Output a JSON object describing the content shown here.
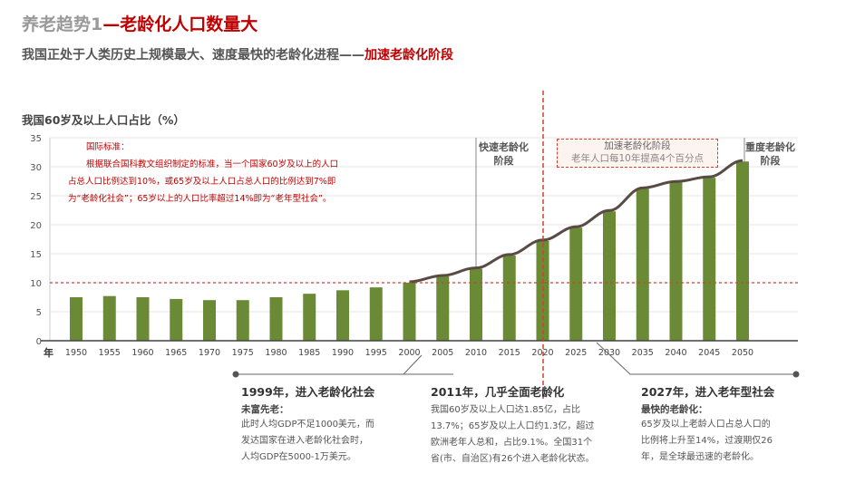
{
  "title": {
    "prefix": "养老趋势1",
    "main": "—老龄化人口数量大"
  },
  "subtitle": {
    "text": "我国正处于人类历史上规模最大、速度最快的老龄化进程——",
    "highlight": "加速老龄化阶段"
  },
  "note": {
    "heading": "国际标准：",
    "lines": [
      "根据联合国科教文组织制定的标准，当一个国家60岁及以上的人口",
      "占总人口比例达到10%，或65岁及以上人口占总人口的比例达到7%即",
      "为“老龄化社会”；65岁以上的人口比率超过14%即为“老年型社会”。"
    ]
  },
  "stages": {
    "fast": [
      "快速老龄化",
      "阶段"
    ],
    "accel_title": "加速老龄化阶段",
    "accel_sub": "老年人口每10年提高4个百分点",
    "heavy": [
      "重度老龄化",
      "阶段"
    ]
  },
  "footer": [
    {
      "title": "1999年，进入老龄化社会",
      "sub": "未富先老：",
      "lines": [
        "此时人均GDP不足1000美元，而",
        "发达国家在进入老龄化社会时，",
        "人均GDP在5000-1万美元。"
      ]
    },
    {
      "title": "2011年，几乎全面老龄化",
      "sub": "",
      "lines": [
        "我国60岁及以上人口达1.85亿，占比",
        "13.7%；65岁及以上人口约1.3亿，超过",
        "欧洲老年人总和，占比9.1%。全国31个",
        "省(市、自治区)有26个进入老龄化状态。"
      ]
    },
    {
      "title": "2027年，进入老年型社会",
      "sub": "最快的老龄化：",
      "lines": [
        "65岁及以上老龄人口占总人口的",
        "比例将上升至14%，过渡期仅26",
        "年，是全球最迅速的老龄化。"
      ]
    }
  ],
  "colors": {
    "bar": "#6b8a35",
    "line": "#5a4a44",
    "red": "#e03a2a"
  },
  "chart_data": {
    "type": "bar",
    "title": "我国60岁及以上人口占比（%）",
    "xlabel": "年",
    "ylabel": "",
    "categories": [
      "1950",
      "1955",
      "1960",
      "1965",
      "1970",
      "1975",
      "1980",
      "1985",
      "1990",
      "1995",
      "2000",
      "2005",
      "2010",
      "2015",
      "2020",
      "2025",
      "2030",
      "2035",
      "2040",
      "2045",
      "2050"
    ],
    "values": [
      7.5,
      7.7,
      7.5,
      7.2,
      7.0,
      7.0,
      7.5,
      8.1,
      8.7,
      9.2,
      10.0,
      11.1,
      12.4,
      14.7,
      17.2,
      19.5,
      22.3,
      26.2,
      27.3,
      28.1,
      30.9
    ],
    "line_from": "2000",
    "ylim": [
      0,
      35
    ],
    "yticks": [
      "0",
      "5",
      "10",
      "15",
      "20",
      "25",
      "30",
      "35"
    ],
    "reference_line": 10,
    "grid": true
  }
}
